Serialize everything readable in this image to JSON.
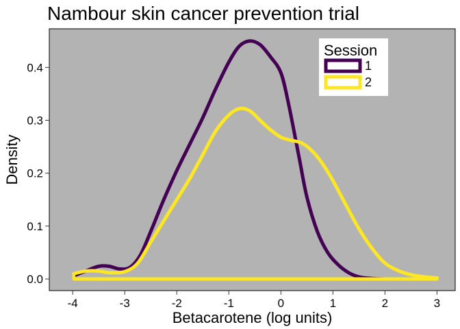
{
  "chart_data": {
    "type": "area",
    "title": "Nambour skin cancer prevention trial",
    "xlabel": "Betacarotene (log units)",
    "ylabel": "Density",
    "xlim": [
      -4.45,
      3.35
    ],
    "ylim": [
      -0.022,
      0.473
    ],
    "x_ticks": [
      -4,
      -3,
      -2,
      -1,
      0,
      1,
      2,
      3
    ],
    "x_tick_labels": [
      "-4",
      "-3",
      "-2",
      "-1",
      "0",
      "1",
      "2",
      "3"
    ],
    "y_ticks": [
      0.0,
      0.1,
      0.2,
      0.3,
      0.4
    ],
    "y_tick_labels": [
      "0.0",
      "0.1",
      "0.2",
      "0.3",
      "0.4"
    ],
    "grid": false,
    "panel_color": "#b3b3b3",
    "legend": {
      "title": "Session",
      "placement": "top-right",
      "entries": [
        {
          "label": "1",
          "color": "#440154"
        },
        {
          "label": "2",
          "color": "#fde725"
        }
      ]
    },
    "series": [
      {
        "name": "1",
        "color": "#440154",
        "points": [
          [
            -3.98,
            0.006
          ],
          [
            -3.75,
            0.015
          ],
          [
            -3.5,
            0.024
          ],
          [
            -3.3,
            0.024
          ],
          [
            -3.1,
            0.019
          ],
          [
            -2.9,
            0.022
          ],
          [
            -2.7,
            0.045
          ],
          [
            -2.5,
            0.09
          ],
          [
            -2.25,
            0.15
          ],
          [
            -2.0,
            0.205
          ],
          [
            -1.75,
            0.255
          ],
          [
            -1.5,
            0.305
          ],
          [
            -1.25,
            0.36
          ],
          [
            -1.0,
            0.41
          ],
          [
            -0.8,
            0.44
          ],
          [
            -0.6,
            0.45
          ],
          [
            -0.4,
            0.443
          ],
          [
            -0.2,
            0.42
          ],
          [
            0.0,
            0.39
          ],
          [
            0.15,
            0.33
          ],
          [
            0.35,
            0.23
          ],
          [
            0.5,
            0.155
          ],
          [
            0.7,
            0.09
          ],
          [
            0.9,
            0.05
          ],
          [
            1.1,
            0.027
          ],
          [
            1.3,
            0.012
          ],
          [
            1.5,
            0.004
          ],
          [
            1.75,
            0.001
          ],
          [
            2.0,
            0.0
          ]
        ]
      },
      {
        "name": "2",
        "color": "#fde725",
        "points": [
          [
            -3.98,
            0.01
          ],
          [
            -3.75,
            0.015
          ],
          [
            -3.5,
            0.015
          ],
          [
            -3.3,
            0.012
          ],
          [
            -3.0,
            0.014
          ],
          [
            -2.75,
            0.03
          ],
          [
            -2.5,
            0.07
          ],
          [
            -2.25,
            0.11
          ],
          [
            -2.0,
            0.15
          ],
          [
            -1.75,
            0.19
          ],
          [
            -1.5,
            0.235
          ],
          [
            -1.25,
            0.28
          ],
          [
            -1.0,
            0.31
          ],
          [
            -0.8,
            0.322
          ],
          [
            -0.6,
            0.318
          ],
          [
            -0.4,
            0.3
          ],
          [
            -0.2,
            0.282
          ],
          [
            0.0,
            0.268
          ],
          [
            0.2,
            0.262
          ],
          [
            0.4,
            0.257
          ],
          [
            0.6,
            0.242
          ],
          [
            0.8,
            0.218
          ],
          [
            1.0,
            0.186
          ],
          [
            1.25,
            0.14
          ],
          [
            1.5,
            0.095
          ],
          [
            1.75,
            0.058
          ],
          [
            2.0,
            0.03
          ],
          [
            2.25,
            0.016
          ],
          [
            2.5,
            0.008
          ],
          [
            2.75,
            0.004
          ],
          [
            3.0,
            0.002
          ]
        ]
      }
    ]
  }
}
